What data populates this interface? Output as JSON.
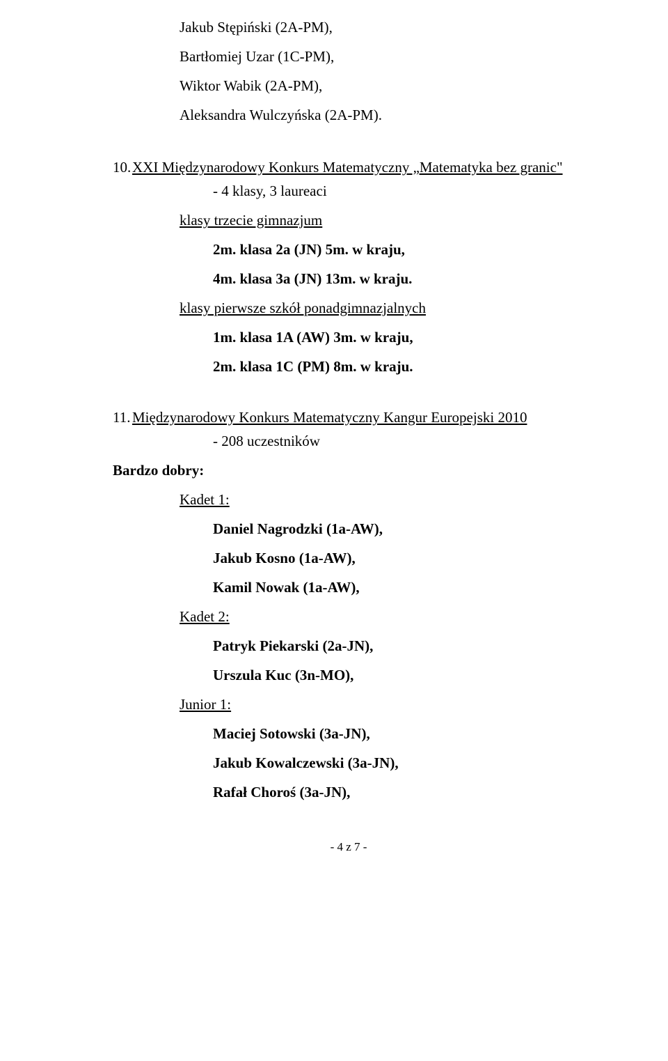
{
  "top_names": [
    "Jakub Stępiński (2A-PM),",
    "Bartłomiej Uzar (1C-PM),",
    "Wiktor Wabik (2A-PM),",
    "Aleksandra Wulczyńska (2A-PM)."
  ],
  "section10": {
    "num": "10.",
    "title": "XXI Międzynarodowy Konkurs Matematyczny „Matematyka bez granic\"",
    "sub": "- 4 klasy, 3 laureaci",
    "group_a": {
      "label": "klasy trzecie gimnazjum",
      "lines": [
        "2m. klasa 2a (JN) 5m. w kraju,",
        "4m. klasa 3a (JN) 13m. w kraju."
      ]
    },
    "group_b": {
      "label": "klasy pierwsze szkół ponadgimnazjalnych",
      "lines": [
        "1m. klasa 1A (AW) 3m. w kraju,",
        "2m. klasa 1C (PM) 8m. w kraju."
      ]
    }
  },
  "section11": {
    "num": "11.",
    "title": "Międzynarodowy Konkurs Matematyczny Kangur Europejski 2010",
    "sub": "- 208 uczestników",
    "rating": "Bardzo dobry:",
    "groups": [
      {
        "label": "Kadet 1:",
        "lines": [
          "Daniel Nagrodzki (1a-AW),",
          "Jakub Kosno (1a-AW),",
          "Kamil Nowak (1a-AW),"
        ]
      },
      {
        "label": "Kadet 2:",
        "lines": [
          "Patryk Piekarski (2a-JN),",
          "Urszula Kuc (3n-MO),"
        ]
      },
      {
        "label": "Junior 1:",
        "lines": [
          "Maciej Sotowski (3a-JN),",
          "Jakub Kowalczewski (3a-JN),",
          "Rafał Choroś (3a-JN),"
        ]
      }
    ]
  },
  "footer": "- 4 z 7 -"
}
